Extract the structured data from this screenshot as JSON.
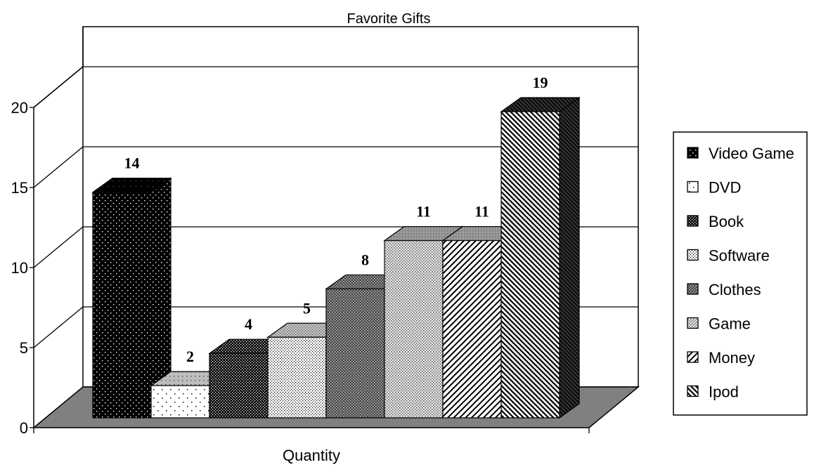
{
  "chart_data": {
    "type": "bar",
    "title": "Favorite Gifts",
    "xlabel": "Quantity",
    "ylabel": "",
    "ylim": [
      0,
      20
    ],
    "yticks": [
      "0",
      "5",
      "10",
      "15",
      "20"
    ],
    "grid": true,
    "legend_position": "right",
    "three_d": true,
    "series": [
      {
        "name": "Video Game",
        "value": 14,
        "label": "14",
        "pattern": "dots-dark"
      },
      {
        "name": "DVD",
        "value": 2,
        "label": "2",
        "pattern": "dots-light"
      },
      {
        "name": "Book",
        "value": 4,
        "label": "4",
        "pattern": "check-dark"
      },
      {
        "name": "Software",
        "value": 5,
        "label": "5",
        "pattern": "fine-dots"
      },
      {
        "name": "Clothes",
        "value": 8,
        "label": "8",
        "pattern": "check-mid"
      },
      {
        "name": "Game",
        "value": 11,
        "label": "11",
        "pattern": "check-light"
      },
      {
        "name": "Money",
        "value": 11,
        "label": "11",
        "pattern": "diag-back"
      },
      {
        "name": "Ipod",
        "value": 19,
        "label": "19",
        "pattern": "diag-fwd"
      }
    ]
  },
  "colors": {
    "floor": "#808080",
    "line": "#000000",
    "background": "#ffffff"
  }
}
